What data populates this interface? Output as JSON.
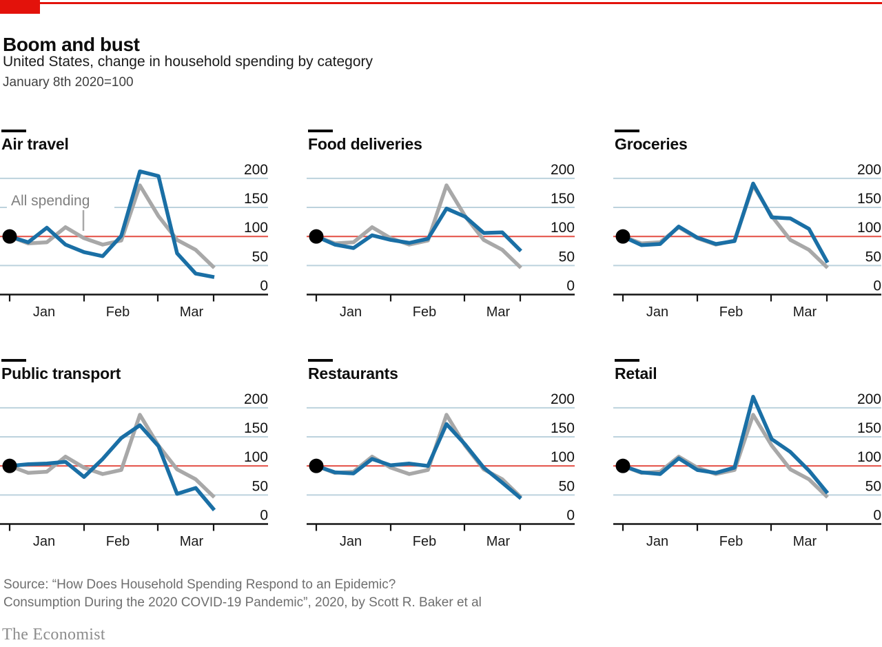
{
  "header": {
    "title": "Boom and bust",
    "subtitle": "United States, change in household spending by category",
    "index_note": "January 8th 2020=100"
  },
  "footer": {
    "source_line_1": "Source: “How Does Household Spending Respond to an Epidemic?",
    "source_line_2": "Consumption During the 2020 COVID-19 Pandemic”, 2020, by Scott R. Baker et al",
    "brand": "The Economist"
  },
  "colors": {
    "accent_red": "#E3120B",
    "baseline_red": "#E4564C",
    "line_blue": "#1A6FA5",
    "line_gray": "#A8A8A8",
    "gridline": "#BCD2DD",
    "axis_black": "#141414",
    "dot_black": "#000000",
    "annotation_gray": "#7F7F7F",
    "footer_gray": "#6E6E6E"
  },
  "chart_data": {
    "type": "line",
    "title": "Boom and bust",
    "subtitle": "United States, change in household spending by category",
    "index_note": "January 8th 2020=100",
    "layout_hint": "six small-multiple panels, 3 columns x 2 rows, shared axes",
    "x_axis": {
      "tick_labels": [
        "Jan",
        "Feb",
        "Mar"
      ],
      "note": "weekly observations, early January to late March 2020"
    },
    "y_axis": {
      "ticks": [
        0,
        50,
        100,
        150,
        200
      ],
      "range": [
        0,
        232
      ],
      "baseline": 100,
      "gridlines": [
        50,
        150,
        200
      ]
    },
    "annotation": {
      "label": "All spending",
      "panel": "Air travel"
    },
    "reference_series": {
      "name": "All spending",
      "color_key": "line_gray",
      "values": [
        100,
        88,
        90,
        116,
        97,
        86,
        93,
        188,
        135,
        94,
        77,
        46
      ]
    },
    "panels": [
      {
        "title": "Air travel",
        "values": [
          100,
          90,
          115,
          86,
          73,
          66,
          101,
          212,
          204,
          71,
          36,
          30
        ]
      },
      {
        "title": "Food deliveries",
        "values": [
          100,
          86,
          80,
          102,
          94,
          89,
          96,
          148,
          134,
          106,
          107,
          75
        ]
      },
      {
        "title": "Groceries",
        "values": [
          100,
          85,
          87,
          117,
          98,
          87,
          92,
          191,
          133,
          131,
          113,
          55
        ]
      },
      {
        "title": "Public transport",
        "values": [
          100,
          103,
          104,
          107,
          81,
          112,
          148,
          170,
          134,
          52,
          62,
          24
        ]
      },
      {
        "title": "Restaurants",
        "values": [
          100,
          89,
          87,
          112,
          101,
          104,
          100,
          172,
          137,
          97,
          71,
          44
        ]
      },
      {
        "title": "Retail",
        "values": [
          100,
          89,
          86,
          113,
          93,
          88,
          97,
          219,
          146,
          124,
          92,
          53
        ]
      }
    ]
  }
}
